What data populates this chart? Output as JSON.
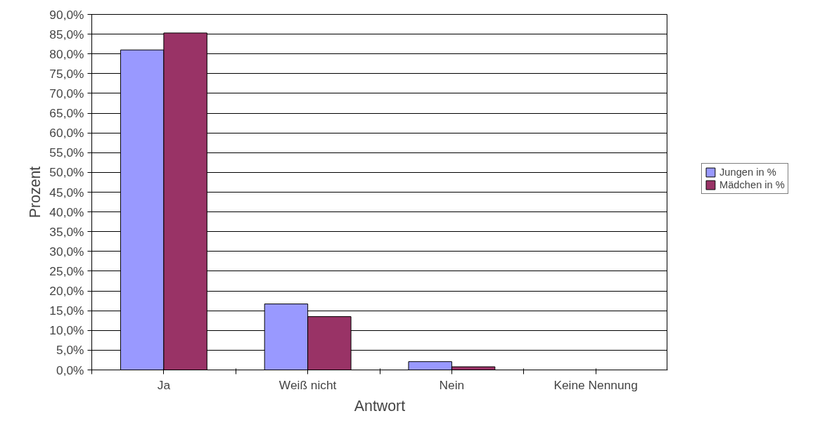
{
  "chart_data": {
    "type": "bar",
    "xlabel": "Antwort",
    "ylabel": "Prozent",
    "categories": [
      "Ja",
      "Weiß nicht",
      "Nein",
      "Keine Nennung"
    ],
    "series": [
      {
        "name": "Jungen in %",
        "color": "#9999ff",
        "values": [
          81.0,
          16.7,
          2.1,
          0
        ]
      },
      {
        "name": "Mädchen in %",
        "color": "#993366",
        "values": [
          85.3,
          13.5,
          0.8,
          0
        ]
      }
    ],
    "ylim": [
      0,
      90
    ],
    "yticks": [
      {
        "value": 0,
        "label": "0,0%"
      },
      {
        "value": 5,
        "label": "5,0%"
      },
      {
        "value": 10,
        "label": "10,0%"
      },
      {
        "value": 15,
        "label": "15,0%"
      },
      {
        "value": 20,
        "label": "20,0%"
      },
      {
        "value": 25,
        "label": "25,0%"
      },
      {
        "value": 30,
        "label": "30,0%"
      },
      {
        "value": 35,
        "label": "35,0%"
      },
      {
        "value": 40,
        "label": "40,0%"
      },
      {
        "value": 45,
        "label": "45,0%"
      },
      {
        "value": 50,
        "label": "50,0%"
      },
      {
        "value": 55,
        "label": "55,0%"
      },
      {
        "value": 60,
        "label": "60,0%"
      },
      {
        "value": 65,
        "label": "65,0%"
      },
      {
        "value": 70,
        "label": "70,0%"
      },
      {
        "value": 75,
        "label": "75,0%"
      },
      {
        "value": 80,
        "label": "80,0%"
      },
      {
        "value": 85,
        "label": "85,0%"
      },
      {
        "value": 90,
        "label": "90,0%"
      }
    ],
    "grid": "y",
    "legend": "right"
  }
}
